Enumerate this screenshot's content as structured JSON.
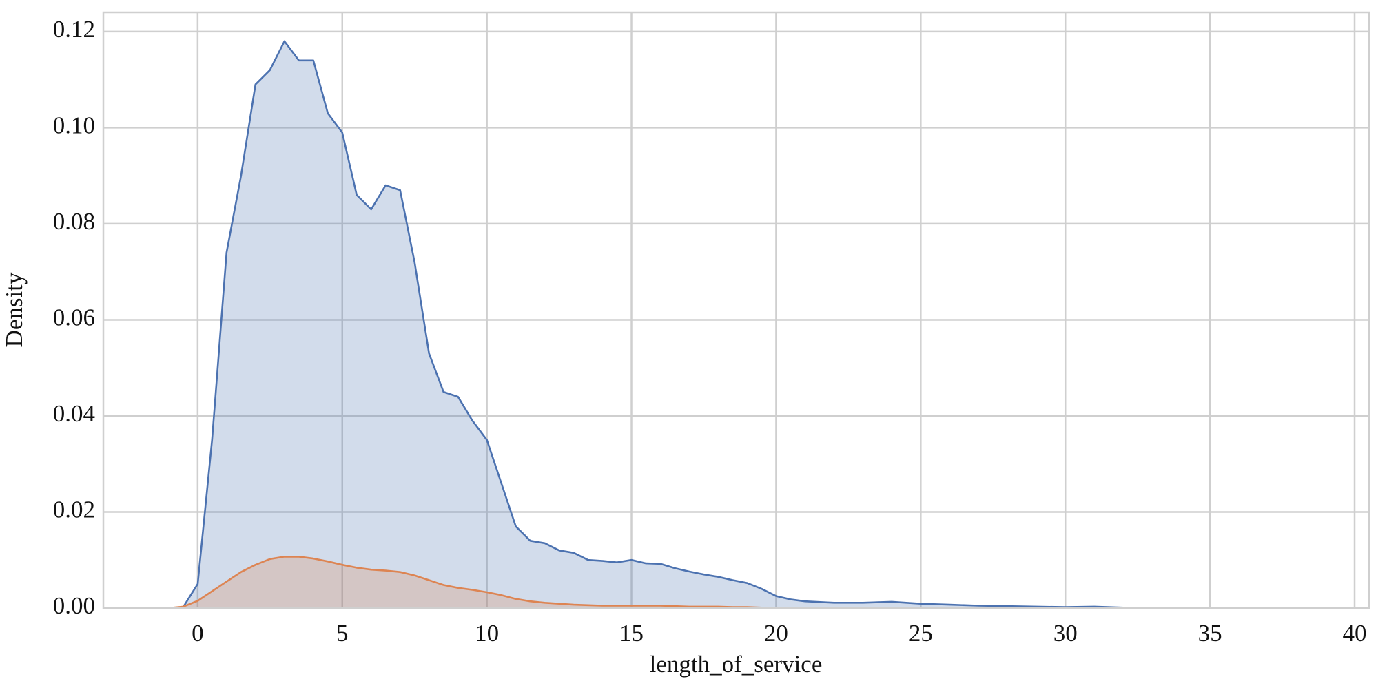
{
  "chart_data": {
    "type": "area",
    "x_label": "length_of_service",
    "y_label": "Density",
    "x": [
      -1,
      -0.5,
      0,
      0.5,
      1,
      1.5,
      2,
      2.5,
      3,
      3.5,
      4,
      4.5,
      5,
      5.5,
      6,
      6.5,
      7,
      7.5,
      8,
      8.5,
      9,
      9.5,
      10,
      10.5,
      11,
      11.5,
      12,
      12.5,
      13,
      13.5,
      14,
      14.5,
      15,
      15.5,
      16,
      16.5,
      17,
      17.5,
      18,
      18.5,
      19,
      19.5,
      20,
      20.5,
      21,
      22,
      23,
      24,
      25,
      26,
      27,
      28,
      29,
      30,
      31,
      32,
      33,
      35,
      38.5
    ],
    "series": [
      {
        "color": "#4c72b0",
        "values": [
          0,
          0.0002,
          0.005,
          0.035,
          0.074,
          0.09,
          0.109,
          0.112,
          0.118,
          0.114,
          0.114,
          0.103,
          0.099,
          0.086,
          0.083,
          0.088,
          0.087,
          0.072,
          0.053,
          0.045,
          0.044,
          0.039,
          0.035,
          0.026,
          0.017,
          0.014,
          0.0135,
          0.012,
          0.0115,
          0.01,
          0.0098,
          0.0095,
          0.01,
          0.0093,
          0.0092,
          0.0083,
          0.0076,
          0.007,
          0.0065,
          0.0058,
          0.0052,
          0.004,
          0.0025,
          0.0018,
          0.0014,
          0.0011,
          0.0011,
          0.0013,
          0.0009,
          0.0007,
          0.0005,
          0.0004,
          0.0003,
          0.0002,
          0.0003,
          0.0001,
          5e-05,
          0,
          0
        ]
      },
      {
        "color": "#dd8452",
        "values": [
          0,
          0.0003,
          0.0015,
          0.0035,
          0.0055,
          0.0075,
          0.009,
          0.0102,
          0.0107,
          0.0107,
          0.0103,
          0.0097,
          0.009,
          0.0084,
          0.008,
          0.0078,
          0.0075,
          0.0068,
          0.0058,
          0.0048,
          0.0042,
          0.0038,
          0.0033,
          0.0027,
          0.0019,
          0.0014,
          0.0011,
          0.0009,
          0.0007,
          0.0006,
          0.0005,
          0.0005,
          0.0005,
          0.0005,
          0.0005,
          0.0004,
          0.0003,
          0.0003,
          0.0003,
          0.0002,
          0.0002,
          0.0001,
          0.0001,
          0,
          0,
          null,
          null,
          null,
          null,
          null,
          null,
          null,
          null,
          null,
          null,
          null,
          null,
          null,
          null
        ]
      }
    ],
    "xlim": [
      -3.26,
      40.5
    ],
    "ylim": [
      0,
      0.124
    ],
    "xticks": [
      0,
      5,
      10,
      15,
      20,
      25,
      30,
      35,
      40
    ],
    "yticks": [
      {
        "value": 0,
        "label": "0.00"
      },
      0.02,
      0.04,
      0.06,
      0.08,
      {
        "value": 0.1,
        "label": "0.10"
      },
      0.12
    ],
    "grid": true
  }
}
